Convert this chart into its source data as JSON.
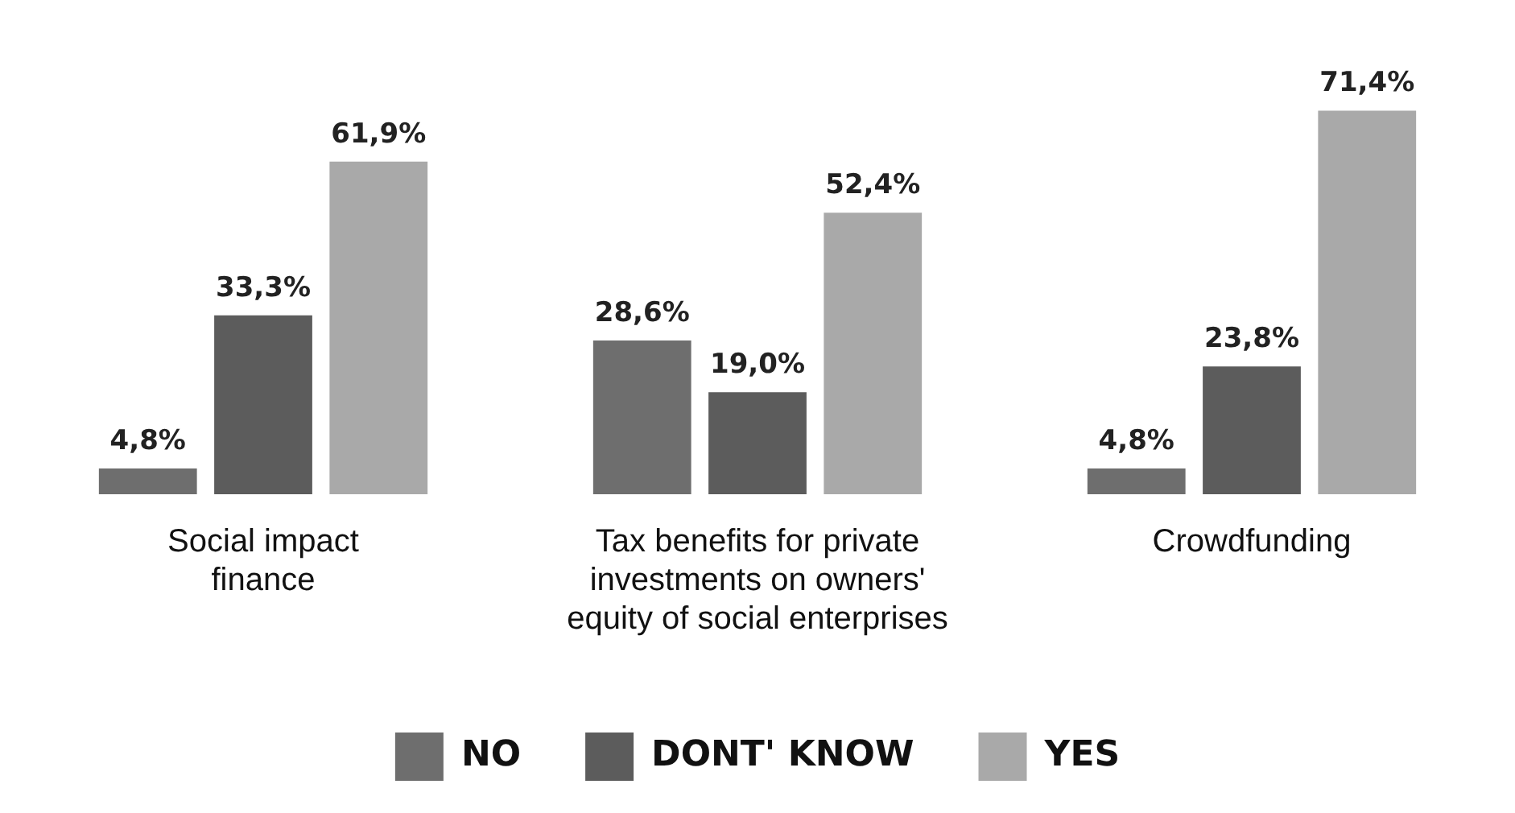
{
  "chart_data": {
    "type": "bar",
    "categories": [
      "Social impact\nfinance",
      "Tax benefits for private\ninvestments on owners'\nequity of social enterprises",
      "Crowdfunding"
    ],
    "series": [
      {
        "name": "NO",
        "color": "#6e6e6e",
        "values": [
          4.8,
          28.6,
          4.8
        ],
        "value_labels": [
          "4,8%",
          "28,6%",
          "4,8%"
        ]
      },
      {
        "name": "DONT' KNOW",
        "color": "#5c5c5c",
        "values": [
          33.3,
          19.0,
          23.8
        ],
        "value_labels": [
          "33,3%",
          "19,0%",
          "23,8%"
        ]
      },
      {
        "name": "YES",
        "color": "#a9a9a9",
        "values": [
          61.9,
          52.4,
          71.4
        ],
        "value_labels": [
          "61,9%",
          "52,4%",
          "71,4%"
        ]
      }
    ],
    "grid": false,
    "legend": "bottom"
  }
}
